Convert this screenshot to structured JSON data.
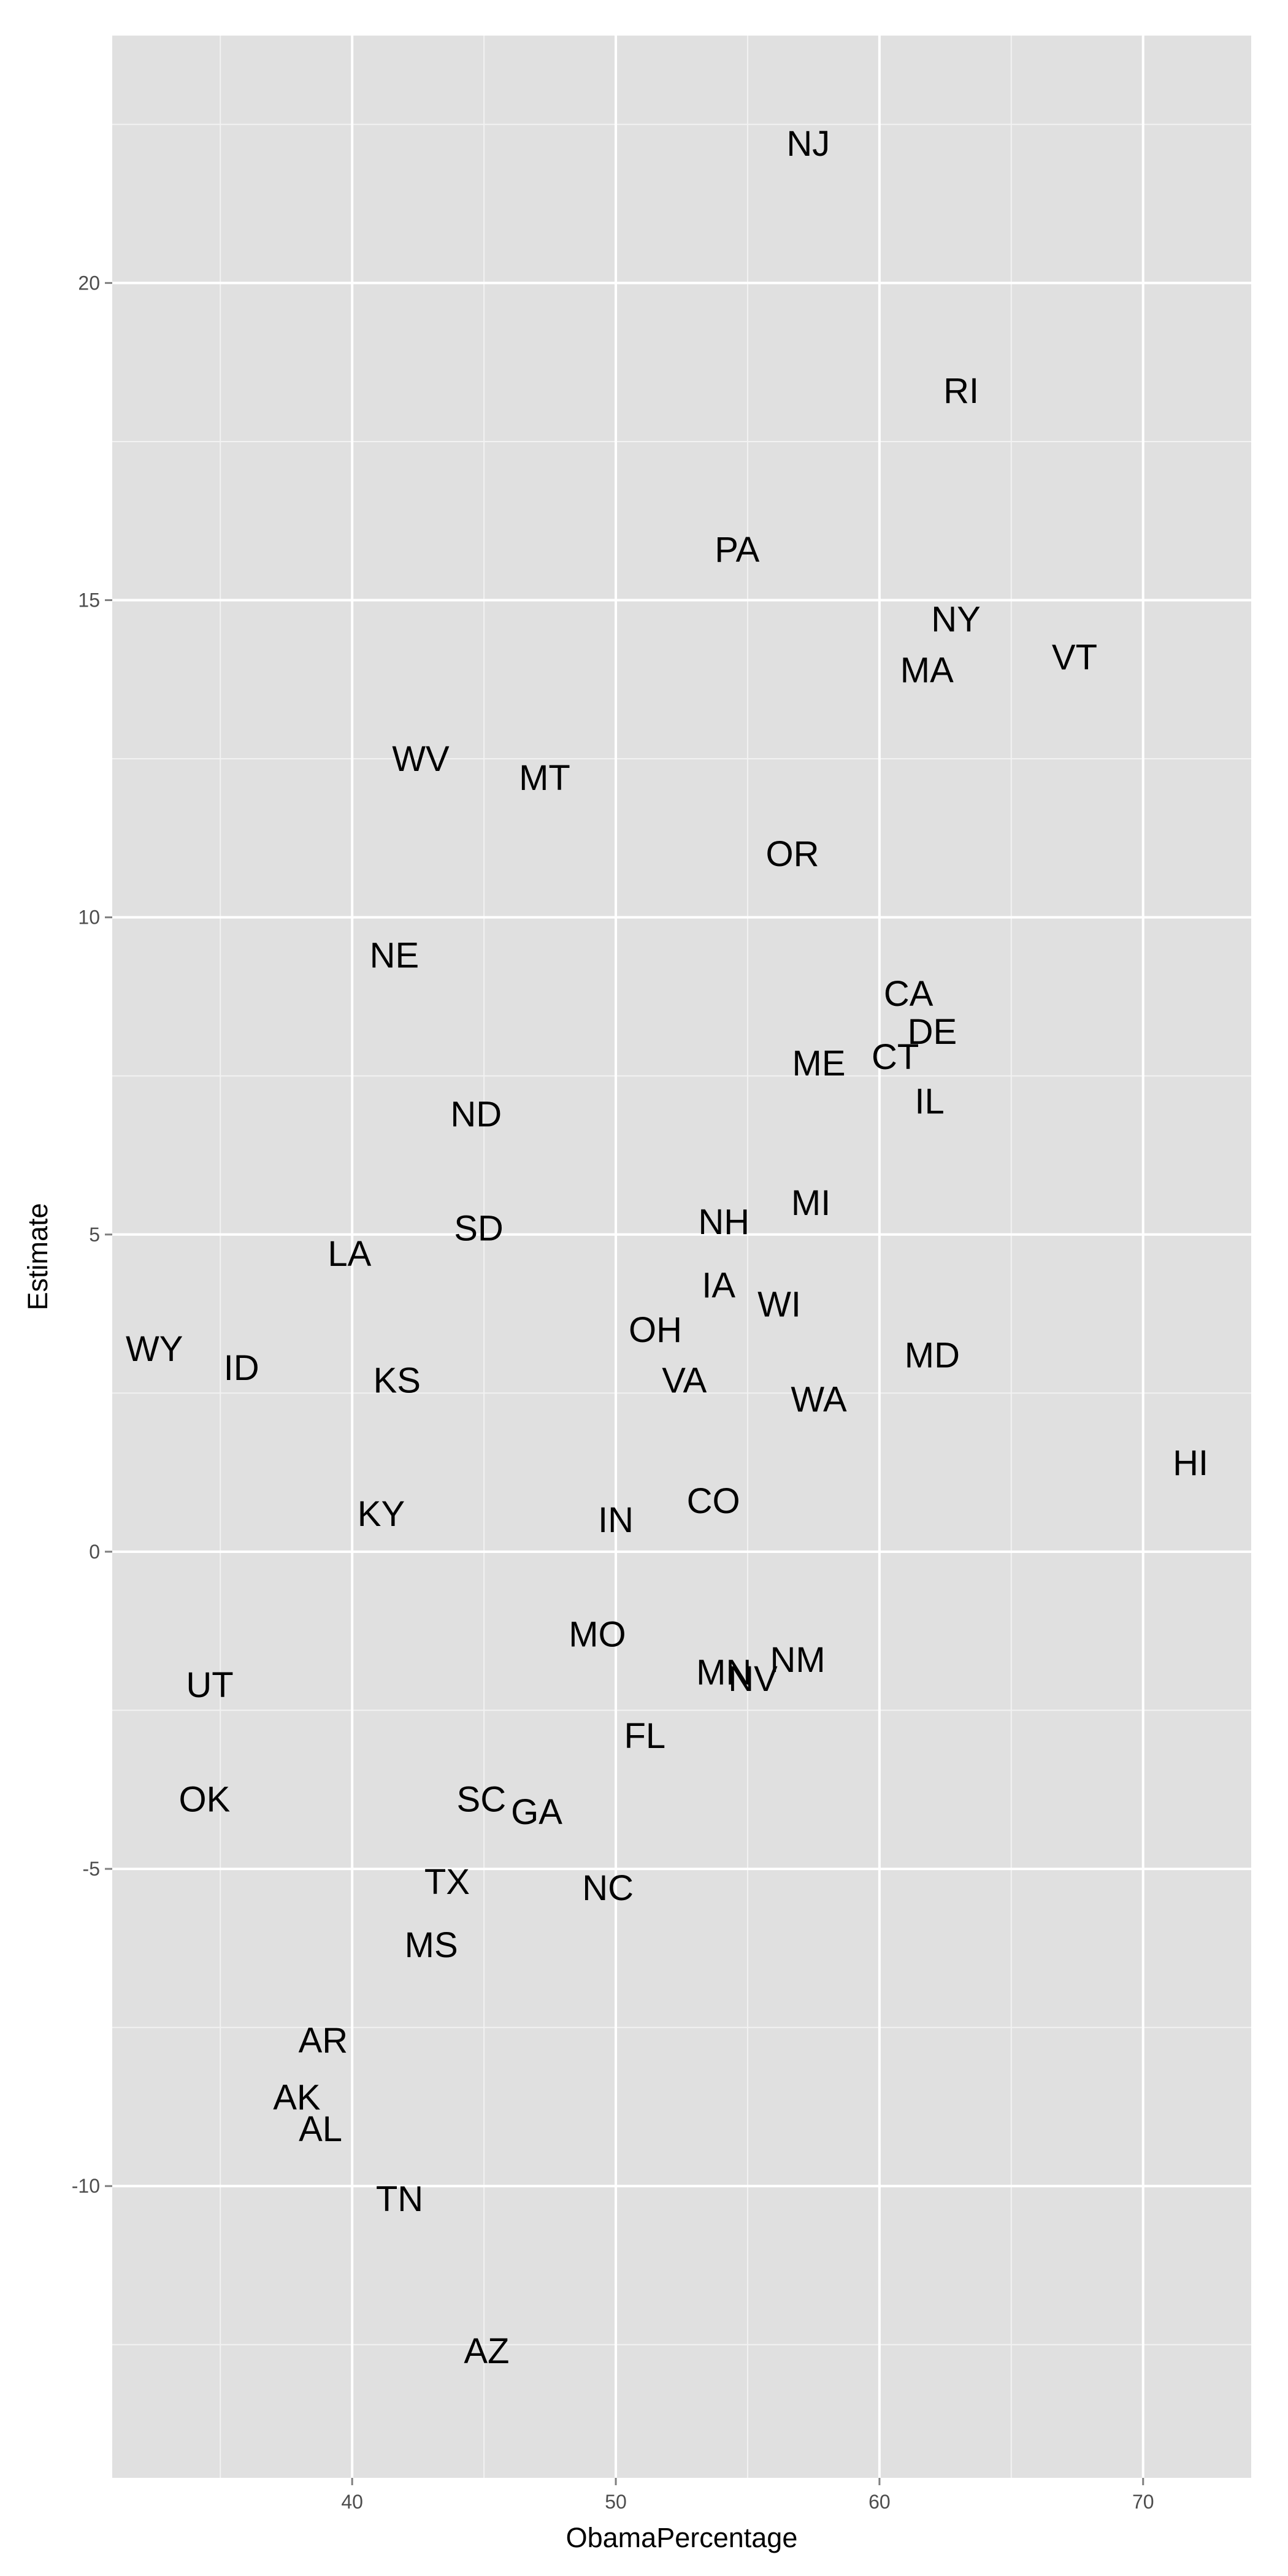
{
  "chart_data": {
    "type": "scatter",
    "title": "",
    "xlabel": "ObamaPercentage",
    "ylabel": "Estimate",
    "xlim": [
      30.9,
      74.1
    ],
    "ylim": [
      -14.6,
      23.9
    ],
    "x_ticks": [
      40,
      50,
      60,
      70
    ],
    "y_ticks": [
      -10,
      -5,
      0,
      5,
      10,
      15,
      20
    ],
    "x_tick_labels": [
      "40",
      "50",
      "60",
      "70"
    ],
    "y_tick_labels": [
      "-10",
      "-5",
      "0",
      "5",
      "10",
      "15",
      "20"
    ],
    "grid": true,
    "legend": "none",
    "marker": "text",
    "colors": {
      "panel": "#e0e0e0",
      "grid": "#ffffff",
      "text": "#000000",
      "ticks": "#4d4d4d"
    },
    "points": [
      {
        "label": "NJ",
        "x": 57.3,
        "y": 22.2
      },
      {
        "label": "RI",
        "x": 63.1,
        "y": 18.3
      },
      {
        "label": "PA",
        "x": 54.6,
        "y": 15.8
      },
      {
        "label": "NY",
        "x": 62.9,
        "y": 14.7
      },
      {
        "label": "VT",
        "x": 67.4,
        "y": 14.1
      },
      {
        "label": "MA",
        "x": 61.8,
        "y": 13.9
      },
      {
        "label": "WV",
        "x": 42.6,
        "y": 12.5
      },
      {
        "label": "MT",
        "x": 47.3,
        "y": 12.2
      },
      {
        "label": "OR",
        "x": 56.7,
        "y": 11.0
      },
      {
        "label": "NE",
        "x": 41.6,
        "y": 9.4
      },
      {
        "label": "CA",
        "x": 61.1,
        "y": 8.8
      },
      {
        "label": "DE",
        "x": 62.0,
        "y": 8.2
      },
      {
        "label": "CT",
        "x": 60.6,
        "y": 7.8
      },
      {
        "label": "ME",
        "x": 57.7,
        "y": 7.7
      },
      {
        "label": "IL",
        "x": 61.9,
        "y": 7.1
      },
      {
        "label": "ND",
        "x": 44.7,
        "y": 6.9
      },
      {
        "label": "MI",
        "x": 57.4,
        "y": 5.5
      },
      {
        "label": "NH",
        "x": 54.1,
        "y": 5.2
      },
      {
        "label": "SD",
        "x": 44.8,
        "y": 5.1
      },
      {
        "label": "LA",
        "x": 39.9,
        "y": 4.7
      },
      {
        "label": "IA",
        "x": 53.9,
        "y": 4.2
      },
      {
        "label": "WI",
        "x": 56.2,
        "y": 3.9
      },
      {
        "label": "OH",
        "x": 51.5,
        "y": 3.5
      },
      {
        "label": "WY",
        "x": 32.5,
        "y": 3.2
      },
      {
        "label": "MD",
        "x": 62.0,
        "y": 3.1
      },
      {
        "label": "ID",
        "x": 35.8,
        "y": 2.9
      },
      {
        "label": "KS",
        "x": 41.7,
        "y": 2.7
      },
      {
        "label": "VA",
        "x": 52.6,
        "y": 2.7
      },
      {
        "label": "WA",
        "x": 57.7,
        "y": 2.4
      },
      {
        "label": "HI",
        "x": 71.8,
        "y": 1.4
      },
      {
        "label": "CO",
        "x": 53.7,
        "y": 0.8
      },
      {
        "label": "KY",
        "x": 41.1,
        "y": 0.6
      },
      {
        "label": "IN",
        "x": 50.0,
        "y": 0.5
      },
      {
        "label": "MO",
        "x": 49.3,
        "y": -1.3
      },
      {
        "label": "NM",
        "x": 56.9,
        "y": -1.7
      },
      {
        "label": "MN",
        "x": 54.1,
        "y": -1.9
      },
      {
        "label": "NV",
        "x": 55.2,
        "y": -2.0
      },
      {
        "label": "UT",
        "x": 34.6,
        "y": -2.1
      },
      {
        "label": "FL",
        "x": 51.1,
        "y": -2.9
      },
      {
        "label": "OK",
        "x": 34.4,
        "y": -3.9
      },
      {
        "label": "SC",
        "x": 44.9,
        "y": -3.9
      },
      {
        "label": "GA",
        "x": 47.0,
        "y": -4.1
      },
      {
        "label": "TX",
        "x": 43.6,
        "y": -5.2
      },
      {
        "label": "NC",
        "x": 49.7,
        "y": -5.3
      },
      {
        "label": "MS",
        "x": 43.0,
        "y": -6.2
      },
      {
        "label": "AR",
        "x": 38.9,
        "y": -7.7
      },
      {
        "label": "AK",
        "x": 37.9,
        "y": -8.6
      },
      {
        "label": "AL",
        "x": 38.8,
        "y": -9.1
      },
      {
        "label": "TN",
        "x": 41.8,
        "y": -10.2
      },
      {
        "label": "AZ",
        "x": 45.1,
        "y": -12.6
      }
    ]
  }
}
